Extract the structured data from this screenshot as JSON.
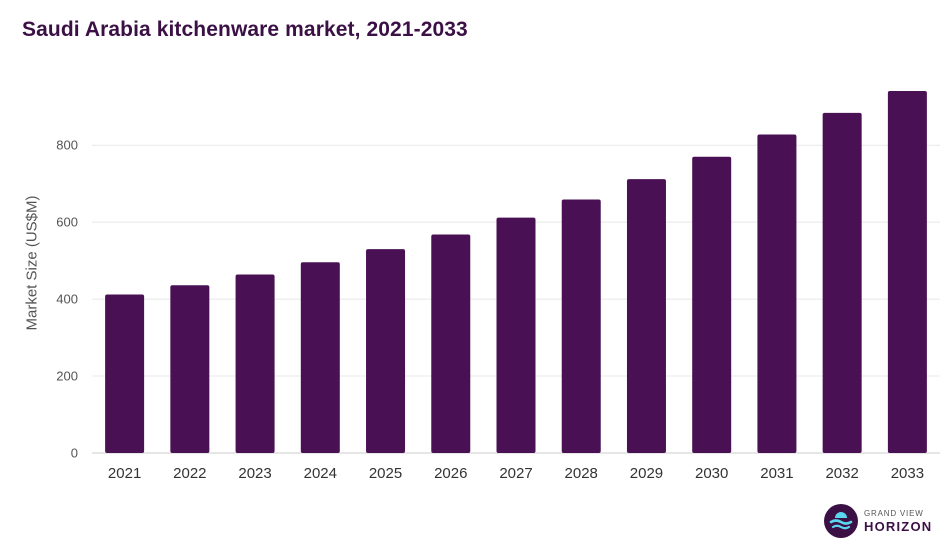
{
  "chart_data": {
    "type": "bar",
    "title": "Saudi Arabia kitchenware market, 2021-2033",
    "xlabel": "",
    "ylabel": "Market Size (US$M)",
    "categories": [
      "2021",
      "2022",
      "2023",
      "2024",
      "2025",
      "2026",
      "2027",
      "2028",
      "2029",
      "2030",
      "2031",
      "2032",
      "2033"
    ],
    "values": [
      412,
      436,
      464,
      496,
      530,
      568,
      612,
      659,
      712,
      770,
      828,
      884,
      941
    ],
    "ylim": [
      0,
      941
    ],
    "yticks": [
      0,
      200,
      400,
      600,
      800
    ],
    "grid": true,
    "legend": "none",
    "bar_color": "#4a1054"
  },
  "logo": {
    "line1": "GRAND VIEW",
    "line2": "HORIZON",
    "colors": {
      "circle": "#3b1145",
      "wave": "#5ad6ef"
    }
  }
}
